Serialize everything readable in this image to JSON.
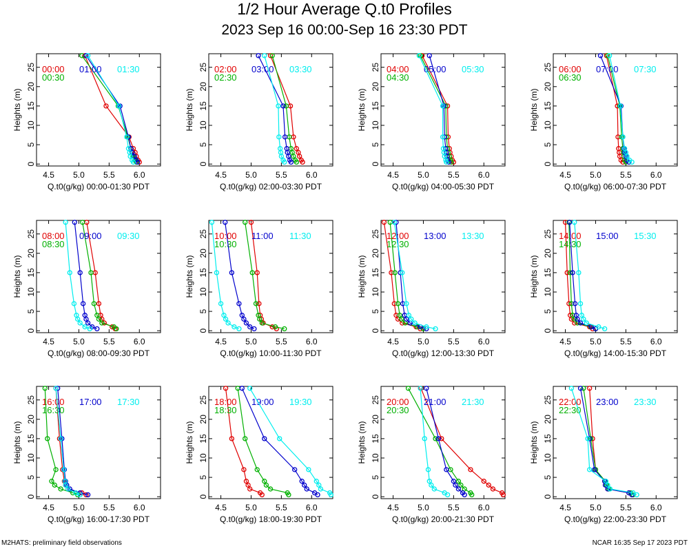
{
  "title": "1/2 Hour Average Q.t0 Profiles",
  "subtitle": "2023 Sep 16 00:00-Sep 16 23:30 PDT",
  "footer_left": "M2HATS: preliminary field observations",
  "footer_right": "NCAR 16:35 Sep 17 2023 PDT",
  "colors": [
    "#e00000",
    "#00b000",
    "#0000cc",
    "#00eeee"
  ],
  "chart_data": {
    "type": "line",
    "ylabel": "Heights (m)",
    "xlim": [
      4.3,
      6.35
    ],
    "ylim": [
      -0.5,
      28.5
    ],
    "xticks": [
      4.5,
      5.0,
      5.5,
      6.0
    ],
    "xtick_labels": [
      "4.5",
      "5.0",
      "5.5",
      "6.0"
    ],
    "yticks": [
      0,
      5,
      10,
      15,
      20,
      25
    ],
    "ytick_labels": [
      "0",
      "5",
      "10",
      "15",
      "20",
      "25"
    ],
    "heights": [
      0.5,
      1,
      2,
      3,
      4,
      7,
      15,
      28
    ],
    "panels": [
      {
        "xlabel": "Q.t0(g/kg) 00:00-01:30 PDT",
        "series": [
          {
            "name": "00:00",
            "values": [
              6.0,
              5.98,
              5.95,
              5.93,
              5.9,
              5.83,
              5.45,
              5.1
            ]
          },
          {
            "name": "00:30",
            "values": [
              5.95,
              5.93,
              5.9,
              5.88,
              5.86,
              5.81,
              5.65,
              5.05
            ]
          },
          {
            "name": "01:00",
            "values": [
              5.97,
              5.95,
              5.92,
              5.88,
              5.86,
              5.82,
              5.68,
              5.12
            ]
          },
          {
            "name": "01:30",
            "values": [
              5.9,
              5.88,
              5.85,
              5.84,
              5.82,
              5.79,
              5.66,
              5.15
            ]
          }
        ]
      },
      {
        "xlabel": "Q.t0(g/kg) 02:00-03:30 PDT",
        "series": [
          {
            "name": "02:00",
            "values": [
              5.85,
              5.83,
              5.8,
              5.78,
              5.75,
              5.7,
              5.65,
              5.32
            ]
          },
          {
            "name": "02:30",
            "values": [
              5.75,
              5.73,
              5.7,
              5.68,
              5.66,
              5.63,
              5.58,
              5.35
            ]
          },
          {
            "name": "03:00",
            "values": [
              5.66,
              5.64,
              5.62,
              5.6,
              5.59,
              5.56,
              5.53,
              5.12
            ]
          },
          {
            "name": "03:30",
            "values": [
              5.55,
              5.53,
              5.5,
              5.49,
              5.48,
              5.46,
              5.45,
              5.22
            ]
          }
        ]
      },
      {
        "xlabel": "Q.t0(g/kg) 04:00-05:30 PDT",
        "series": [
          {
            "name": "04:00",
            "values": [
              5.5,
              5.48,
              5.46,
              5.44,
              5.43,
              5.41,
              5.4,
              4.98
            ]
          },
          {
            "name": "04:30",
            "values": [
              5.46,
              5.45,
              5.43,
              5.41,
              5.4,
              5.38,
              5.37,
              4.95
            ]
          },
          {
            "name": "05:00",
            "values": [
              5.42,
              5.4,
              5.39,
              5.38,
              5.37,
              5.35,
              5.34,
              5.1
            ]
          },
          {
            "name": "05:30",
            "values": [
              5.38,
              5.37,
              5.35,
              5.34,
              5.33,
              5.32,
              5.32,
              4.93
            ]
          }
        ]
      },
      {
        "xlabel": "Q.t0(g/kg) 06:00-07:30 PDT",
        "series": [
          {
            "name": "06:00",
            "values": [
              5.45,
              5.42,
              5.4,
              5.39,
              5.38,
              5.37,
              5.36,
              5.18
            ]
          },
          {
            "name": "06:30",
            "values": [
              5.5,
              5.48,
              5.47,
              5.46,
              5.45,
              5.43,
              5.4,
              5.2
            ]
          },
          {
            "name": "07:00",
            "values": [
              5.55,
              5.52,
              5.5,
              5.48,
              5.47,
              5.45,
              5.42,
              5.08
            ]
          },
          {
            "name": "07:30",
            "values": [
              5.6,
              5.56,
              5.52,
              5.5,
              5.48,
              5.45,
              5.41,
              5.23
            ]
          }
        ]
      },
      {
        "xlabel": "Q.t0(g/kg) 08:00-09:30 PDT",
        "series": [
          {
            "name": "08:00",
            "values": [
              5.6,
              5.55,
              5.42,
              5.38,
              5.36,
              5.33,
              5.27,
              5.13
            ]
          },
          {
            "name": "08:30",
            "values": [
              5.62,
              5.58,
              5.38,
              5.33,
              5.3,
              5.25,
              5.2,
              5.06
            ]
          },
          {
            "name": "09:00",
            "values": [
              5.3,
              5.22,
              5.15,
              5.12,
              5.1,
              5.07,
              5.02,
              4.93
            ]
          },
          {
            "name": "09:30",
            "values": [
              5.18,
              5.1,
              5.02,
              4.98,
              4.96,
              4.92,
              4.85,
              4.78
            ]
          }
        ]
      },
      {
        "xlabel": "Q.t0(g/kg) 10:00-11:30 PDT",
        "series": [
          {
            "name": "10:00",
            "values": [
              5.42,
              5.35,
              5.2,
              5.17,
              5.15,
              5.13,
              5.1,
              5.0
            ]
          },
          {
            "name": "10:30",
            "values": [
              5.55,
              5.4,
              5.18,
              5.14,
              5.12,
              5.08,
              5.02,
              4.9
            ]
          },
          {
            "name": "11:00",
            "values": [
              5.05,
              4.98,
              4.92,
              4.88,
              4.85,
              4.8,
              4.68,
              4.57
            ]
          },
          {
            "name": "11:30",
            "values": [
              4.8,
              4.72,
              4.62,
              4.58,
              4.55,
              4.5,
              4.43,
              4.35
            ]
          }
        ]
      },
      {
        "xlabel": "Q.t0(g/kg) 12:00-13:30 PDT",
        "series": [
          {
            "name": "12:00",
            "values": [
              4.95,
              4.88,
              4.65,
              4.58,
              4.55,
              4.52,
              4.47,
              4.35
            ]
          },
          {
            "name": "12:30",
            "values": [
              5.0,
              4.9,
              4.7,
              4.64,
              4.61,
              4.58,
              4.53,
              4.45
            ]
          },
          {
            "name": "13:00",
            "values": [
              5.05,
              4.95,
              4.78,
              4.72,
              4.69,
              4.66,
              4.62,
              4.55
            ]
          },
          {
            "name": "13:30",
            "values": [
              5.2,
              5.05,
              4.86,
              4.8,
              4.76,
              4.72,
              4.65,
              4.52
            ]
          }
        ]
      },
      {
        "xlabel": "Q.t0(g/kg) 14:00-15:30 PDT",
        "series": [
          {
            "name": "14:00",
            "values": [
              4.95,
              4.9,
              4.65,
              4.6,
              4.58,
              4.56,
              4.53,
              4.5
            ]
          },
          {
            "name": "14:30",
            "values": [
              5.0,
              4.92,
              4.7,
              4.65,
              4.62,
              4.6,
              4.58,
              4.56
            ]
          },
          {
            "name": "15:00",
            "values": [
              5.0,
              4.93,
              4.75,
              4.7,
              4.68,
              4.66,
              4.62,
              4.57
            ]
          },
          {
            "name": "15:30",
            "values": [
              5.15,
              5.05,
              4.85,
              4.8,
              4.77,
              4.75,
              4.72,
              4.65
            ]
          }
        ]
      },
      {
        "xlabel": "Q.t0(g/kg) 16:00-17:30 PDT",
        "series": [
          {
            "name": "16:00",
            "values": [
              5.12,
              5.05,
              4.82,
              4.78,
              4.76,
              4.73,
              4.68,
              4.62
            ]
          },
          {
            "name": "16:30",
            "values": [
              4.98,
              4.9,
              4.7,
              4.6,
              4.55,
              4.62,
              4.48,
              4.44
            ]
          },
          {
            "name": "17:00",
            "values": [
              5.15,
              5.02,
              4.85,
              4.8,
              4.78,
              4.76,
              4.72,
              4.65
            ]
          },
          {
            "name": "17:30",
            "values": [
              5.02,
              4.95,
              4.82,
              4.78,
              4.77,
              4.75,
              4.7,
              4.62
            ]
          }
        ]
      },
      {
        "xlabel": "Q.t0(g/kg) 18:00-19:30 PDT",
        "series": [
          {
            "name": "18:00",
            "values": [
              5.18,
              5.15,
              4.98,
              4.95,
              4.92,
              4.88,
              4.68,
              4.58
            ]
          },
          {
            "name": "18:30",
            "values": [
              5.62,
              5.6,
              5.32,
              5.25,
              5.22,
              5.1,
              4.9,
              4.78
            ]
          },
          {
            "name": "19:00",
            "values": [
              6.1,
              6.05,
              5.92,
              5.88,
              5.84,
              5.72,
              5.22,
              4.85
            ]
          },
          {
            "name": "19:30",
            "values": [
              6.32,
              6.3,
              6.15,
              6.12,
              6.08,
              5.95,
              5.47,
              4.98
            ]
          }
        ]
      },
      {
        "xlabel": "Q.t0(g/kg) 20:00-21:30 PDT",
        "series": [
          {
            "name": "20:00",
            "values": [
              6.32,
              6.3,
              6.15,
              6.08,
              6.0,
              5.78,
              5.3,
              4.96
            ]
          },
          {
            "name": "20:30",
            "values": [
              5.8,
              5.78,
              5.68,
              5.62,
              5.58,
              5.45,
              5.2,
              4.75
            ]
          },
          {
            "name": "21:00",
            "values": [
              5.68,
              5.65,
              5.58,
              5.53,
              5.5,
              5.38,
              5.25,
              5.05
            ]
          },
          {
            "name": "21:30",
            "values": [
              5.4,
              5.35,
              5.18,
              5.13,
              5.1,
              5.08,
              5.02,
              4.95
            ]
          }
        ]
      },
      {
        "xlabel": "Q.t0(g/kg) 22:00-23:30 PDT",
        "series": [
          {
            "name": "22:00",
            "values": [
              5.6,
              5.55,
              5.2,
              5.18,
              5.15,
              5.0,
              4.95,
              4.9
            ]
          },
          {
            "name": "22:30",
            "values": [
              5.62,
              5.58,
              5.22,
              5.18,
              5.16,
              5.0,
              4.92,
              4.8
            ]
          },
          {
            "name": "23:00",
            "values": [
              5.6,
              5.55,
              5.2,
              5.16,
              5.15,
              4.98,
              4.9,
              4.75
            ]
          },
          {
            "name": "23:30",
            "values": [
              5.68,
              5.62,
              5.24,
              5.2,
              5.17,
              4.9,
              4.87,
              4.6
            ]
          }
        ]
      }
    ]
  }
}
